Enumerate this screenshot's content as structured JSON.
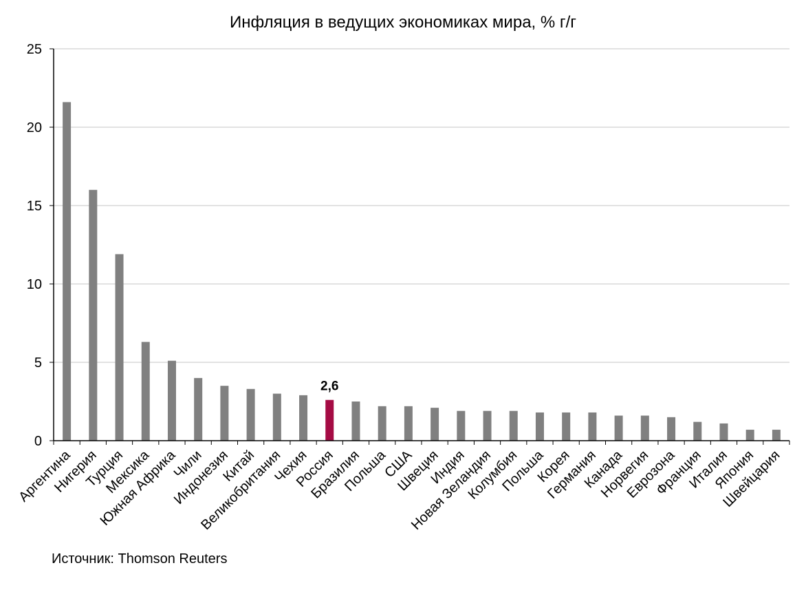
{
  "chart_data": {
    "type": "bar",
    "title": "Инфляция в ведущих экономиках мира, % г/г",
    "xlabel": "",
    "ylabel": "",
    "ylim": [
      0,
      25
    ],
    "yticks": [
      "0",
      "5",
      "10",
      "15",
      "20",
      "25"
    ],
    "grid": true,
    "legend": "none",
    "categories": [
      "Аргентина",
      "Нигерия",
      "Турция",
      "Мексика",
      "Южная Африка",
      "Чили",
      "Индонезия",
      "Китай",
      "Великобритания",
      "Чехия",
      "Россия",
      "Бразилия",
      "Польша",
      "США",
      "Швеция",
      "Индия",
      "Новая Зеландия",
      "Колумбия",
      "Польша",
      "Корея",
      "Германия",
      "Канада",
      "Норвегия",
      "Еврозона",
      "Франция",
      "Италия",
      "Япония",
      "Швейцария"
    ],
    "values": [
      21.6,
      16.0,
      11.9,
      6.3,
      5.1,
      4.0,
      3.5,
      3.3,
      3.0,
      2.9,
      2.6,
      2.5,
      2.2,
      2.2,
      2.1,
      1.9,
      1.9,
      1.9,
      1.8,
      1.8,
      1.8,
      1.6,
      1.6,
      1.5,
      1.2,
      1.1,
      0.7,
      0.7
    ],
    "highlight_index": 10,
    "data_labels": [
      {
        "index": 10,
        "text": "2,6"
      }
    ],
    "colors": {
      "bar": "#808080",
      "highlight": "#A50B44",
      "grid": "#D9D9D9",
      "axis": "#000000"
    }
  },
  "source": "Источник: Thomson Reuters"
}
